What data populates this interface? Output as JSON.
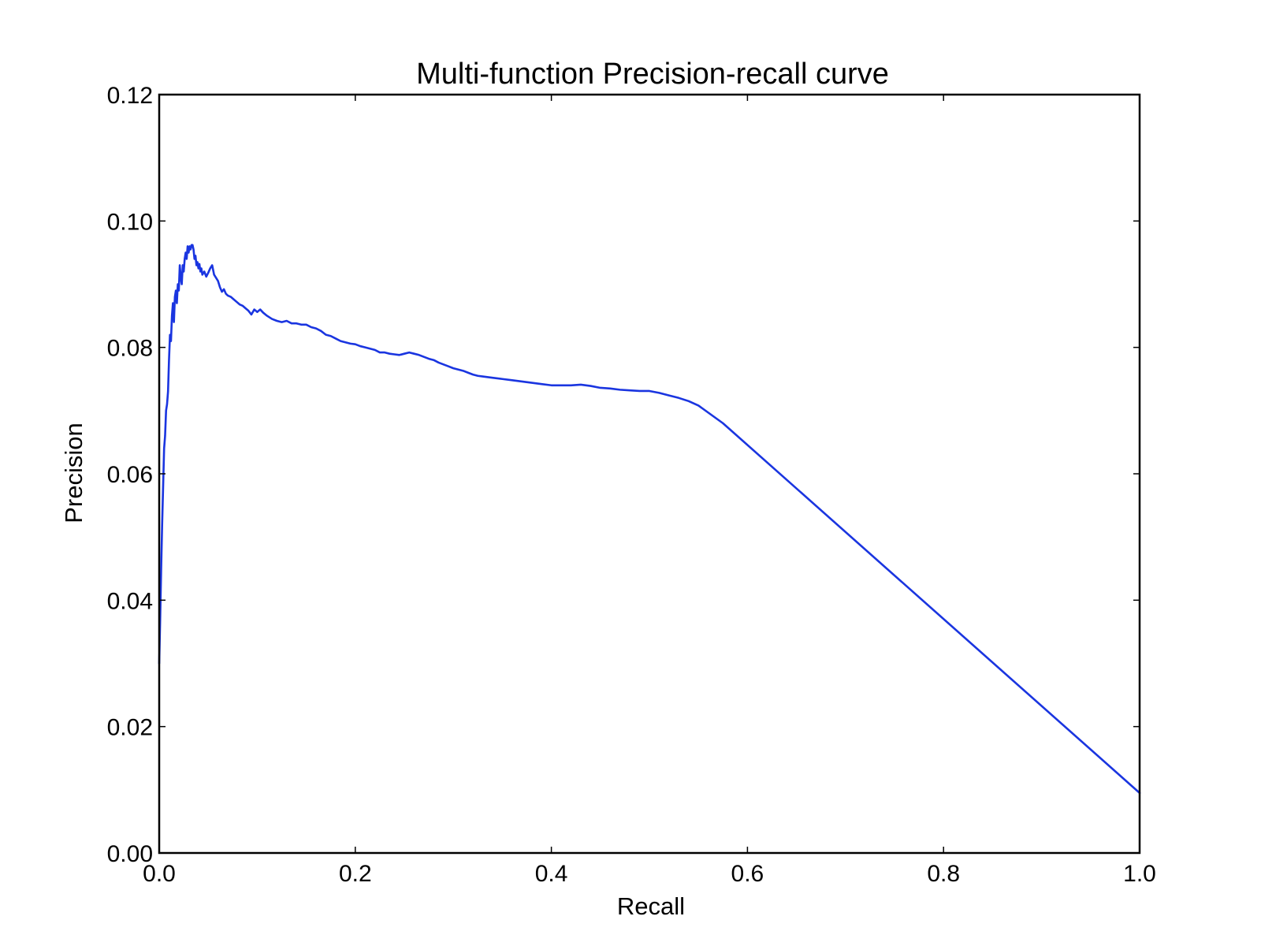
{
  "chart_data": {
    "type": "line",
    "title": "Multi-function Precision-recall curve",
    "xlabel": "Recall",
    "ylabel": "Precision",
    "xlim": [
      0.0,
      1.0
    ],
    "ylim": [
      0.0,
      0.12
    ],
    "xticks": [
      0.0,
      0.2,
      0.4,
      0.6,
      0.8,
      1.0
    ],
    "xtick_labels": [
      "0.0",
      "0.2",
      "0.4",
      "0.6",
      "0.8",
      "1.0"
    ],
    "yticks": [
      0.0,
      0.02,
      0.04,
      0.06,
      0.08,
      0.1,
      0.12
    ],
    "ytick_labels": [
      "0.00",
      "0.02",
      "0.04",
      "0.06",
      "0.08",
      "0.10",
      "0.12"
    ],
    "grid": false,
    "legend": "none",
    "line_color": "#1a35e0",
    "series": [
      {
        "x": [
          0.0,
          0.001,
          0.002,
          0.003,
          0.004,
          0.005,
          0.006,
          0.007,
          0.008,
          0.009,
          0.01,
          0.011,
          0.012,
          0.013,
          0.014,
          0.015,
          0.016,
          0.017,
          0.018,
          0.019,
          0.02,
          0.021,
          0.022,
          0.023,
          0.024,
          0.025,
          0.026,
          0.027,
          0.028,
          0.029,
          0.03,
          0.031,
          0.032,
          0.033,
          0.034,
          0.035,
          0.036,
          0.037,
          0.038,
          0.039,
          0.04,
          0.041,
          0.042,
          0.043,
          0.044,
          0.046,
          0.048,
          0.05,
          0.052,
          0.054,
          0.056,
          0.058,
          0.06,
          0.062,
          0.064,
          0.066,
          0.068,
          0.07,
          0.073,
          0.076,
          0.079,
          0.082,
          0.085,
          0.088,
          0.091,
          0.094,
          0.097,
          0.1,
          0.103,
          0.106,
          0.11,
          0.115,
          0.12,
          0.125,
          0.13,
          0.135,
          0.14,
          0.145,
          0.15,
          0.155,
          0.16,
          0.165,
          0.17,
          0.175,
          0.18,
          0.185,
          0.19,
          0.195,
          0.2,
          0.205,
          0.21,
          0.215,
          0.22,
          0.225,
          0.23,
          0.235,
          0.24,
          0.245,
          0.25,
          0.255,
          0.26,
          0.265,
          0.27,
          0.275,
          0.28,
          0.285,
          0.29,
          0.295,
          0.3,
          0.305,
          0.31,
          0.315,
          0.32,
          0.325,
          0.33,
          0.34,
          0.35,
          0.36,
          0.37,
          0.38,
          0.39,
          0.4,
          0.41,
          0.42,
          0.43,
          0.44,
          0.45,
          0.46,
          0.47,
          0.48,
          0.49,
          0.5,
          0.51,
          0.52,
          0.53,
          0.54,
          0.55,
          0.575,
          1.0
        ],
        "y": [
          0.03,
          0.037,
          0.045,
          0.052,
          0.058,
          0.064,
          0.066,
          0.07,
          0.071,
          0.073,
          0.078,
          0.082,
          0.081,
          0.085,
          0.087,
          0.084,
          0.088,
          0.089,
          0.087,
          0.09,
          0.089,
          0.093,
          0.091,
          0.09,
          0.093,
          0.092,
          0.094,
          0.095,
          0.094,
          0.096,
          0.095,
          0.096,
          0.0955,
          0.0962,
          0.0962,
          0.0955,
          0.094,
          0.0945,
          0.093,
          0.0935,
          0.0925,
          0.0932,
          0.092,
          0.0925,
          0.0915,
          0.092,
          0.0912,
          0.0918,
          0.0925,
          0.093,
          0.0915,
          0.091,
          0.0905,
          0.0895,
          0.0888,
          0.0892,
          0.0885,
          0.0882,
          0.088,
          0.0876,
          0.0872,
          0.0868,
          0.0866,
          0.0862,
          0.0858,
          0.0852,
          0.086,
          0.0856,
          0.086,
          0.0855,
          0.085,
          0.0845,
          0.0842,
          0.084,
          0.0842,
          0.0838,
          0.0838,
          0.0836,
          0.0836,
          0.0832,
          0.083,
          0.0826,
          0.082,
          0.0818,
          0.0814,
          0.081,
          0.0808,
          0.0806,
          0.0805,
          0.0802,
          0.08,
          0.0798,
          0.0796,
          0.0792,
          0.0792,
          0.079,
          0.0789,
          0.0788,
          0.079,
          0.0792,
          0.079,
          0.0788,
          0.0785,
          0.0782,
          0.078,
          0.0776,
          0.0773,
          0.077,
          0.0767,
          0.0765,
          0.0763,
          0.076,
          0.0757,
          0.0755,
          0.0754,
          0.0752,
          0.075,
          0.0748,
          0.0746,
          0.0744,
          0.0742,
          0.074,
          0.074,
          0.074,
          0.0741,
          0.0739,
          0.0736,
          0.0735,
          0.0733,
          0.0732,
          0.0731,
          0.0731,
          0.0728,
          0.0724,
          0.072,
          0.0715,
          0.0708,
          0.068,
          0.0095
        ]
      }
    ]
  }
}
